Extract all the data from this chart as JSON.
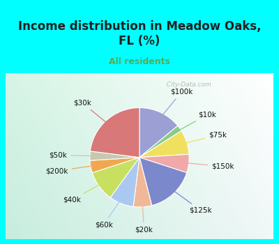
{
  "title": "Income distribution in Meadow Oaks,\nFL (%)",
  "subtitle": "All residents",
  "title_color": "#222222",
  "subtitle_color": "#5aaa55",
  "bg_top_color": "#00ffff",
  "chart_bg_left": "#daf0e8",
  "chart_bg_right": "#e8f8f8",
  "watermark": "City-Data.com",
  "slices": [
    {
      "label": "$100k",
      "value": 14,
      "color": "#9b9fd4"
    },
    {
      "label": "$10k",
      "value": 2,
      "color": "#88cc88"
    },
    {
      "label": "$75k",
      "value": 8,
      "color": "#f0e060"
    },
    {
      "label": "$150k",
      "value": 6,
      "color": "#f0a8a8"
    },
    {
      "label": "$125k",
      "value": 16,
      "color": "#7b88cc"
    },
    {
      "label": "$20k",
      "value": 6,
      "color": "#f0b898"
    },
    {
      "label": "$60k",
      "value": 8,
      "color": "#aac8f0"
    },
    {
      "label": "$40k",
      "value": 10,
      "color": "#c8e060"
    },
    {
      "label": "$200k",
      "value": 4,
      "color": "#f0a850"
    },
    {
      "label": "$50k",
      "value": 3,
      "color": "#c8c8b0"
    },
    {
      "label": "$30k",
      "value": 23,
      "color": "#d87878"
    }
  ],
  "label_fontsize": 7.5,
  "label_color": "#111111",
  "title_fontsize": 12,
  "subtitle_fontsize": 9
}
